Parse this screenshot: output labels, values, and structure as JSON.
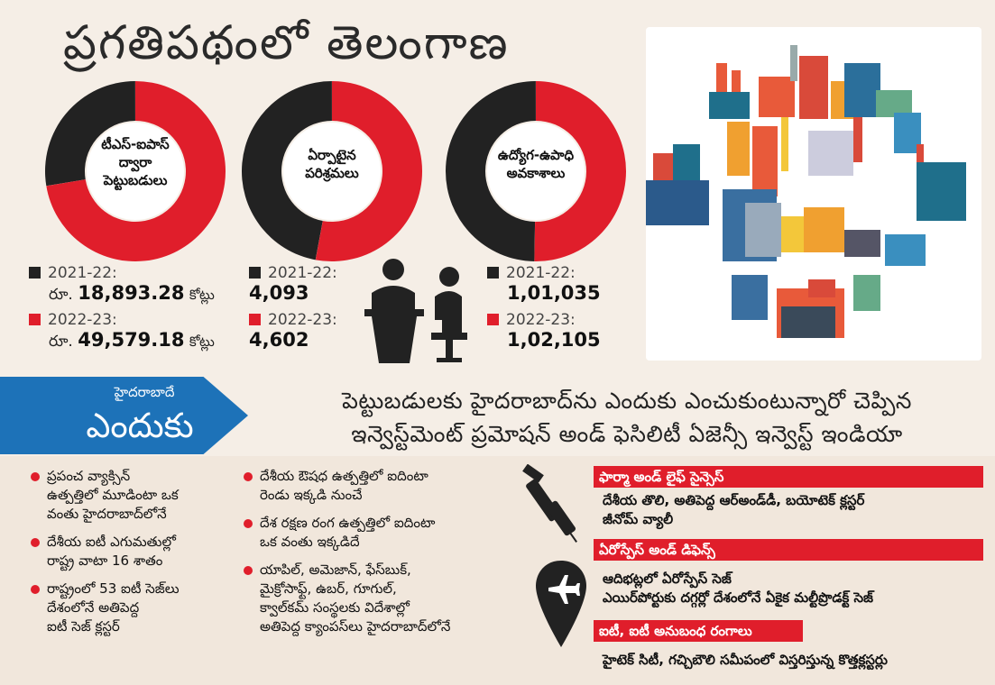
{
  "title": "ప్రగతిపథంలో తెలంగాణ",
  "colors": {
    "red": "#e01e2b",
    "black": "#222222",
    "blue": "#1d72b8"
  },
  "chart_data": [
    {
      "type": "pie",
      "title": "టీఎస్-ఐపాస్ ద్వారా పెట్టుబడులు",
      "categories": [
        "2021-22",
        "2022-23"
      ],
      "values": [
        18893.28,
        49579.18
      ],
      "colors": [
        "#222222",
        "#e01e2b"
      ]
    },
    {
      "type": "pie",
      "title": "ఏర్పాటైన పరిశ్రమలు",
      "categories": [
        "2021-22",
        "2022-23"
      ],
      "values": [
        4093,
        4602
      ],
      "colors": [
        "#222222",
        "#e01e2b"
      ]
    },
    {
      "type": "pie",
      "title": "ఉద్యోగ-ఉపాధి అవకాశాలు",
      "categories": [
        "2021-22",
        "2022-23"
      ],
      "values": [
        101035,
        102105
      ],
      "colors": [
        "#222222",
        "#e01e2b"
      ]
    }
  ],
  "donut_labels": [
    [
      "టీఎస్-ఐపాస్",
      "ద్వారా",
      "పెట్టుబడులు"
    ],
    [
      "ఏర్పాటైన",
      "పరిశ్రమలు"
    ],
    [
      "ఉద్యోగ-ఉపాధి",
      "అవకాశాలు"
    ]
  ],
  "stats": {
    "investments": {
      "y1": "2021-22:",
      "y1_prefix": "రూ.",
      "y1_value": "18,893.28",
      "y1_unit": "కోట్లు",
      "y2": "2022-23:",
      "y2_prefix": "రూ.",
      "y2_value": "49,579.18",
      "y2_unit": "కోట్లు"
    },
    "industries": {
      "y1": "2021-22:",
      "y1_value": "4,093",
      "y2": "2022-23:",
      "y2_value": "4,602"
    },
    "jobs": {
      "y1": "2021-22:",
      "y1_value": "1,01,035",
      "y2": "2022-23:",
      "y2_value": "1,02,105"
    }
  },
  "banner": {
    "small": "హైదరాబాదే",
    "big": "ఎందుకు",
    "subtitle_line1": "పెట్టుబడులకు హైదరాబాద్‌ను ఎందుకు ఎంచుకుంటున్నారో చెప్పిన",
    "subtitle_line2": "ఇన్వెస్ట్‌మెంట్ ప్రమోషన్ అండ్ ఫెసిలిటీ ఏజెన్సీ ఇన్వెస్ట్ ఇండియా"
  },
  "col1": [
    [
      "ప్రపంచ వ్యాక్సిన్",
      "ఉత్పత్తిలో మూడింటా ఒక",
      "వంతు హైదరాబాద్‌లోనే"
    ],
    [
      "దేశీయ ఐటీ ఎగుమతుల్లో",
      "రాష్ట్ర వాటా 16 శాతం"
    ],
    [
      "రాష్ట్రంలో 53 ఐటీ సెజ్‌లు",
      "దేశంలోనే అతిపెద్ద",
      "ఐటీ సెజ్ క్లస్టర్"
    ]
  ],
  "col2": [
    [
      "దేశీయ ఔషధ ఉత్పత్తిలో ఐదింటా",
      "రెండు ఇక్కడి నుంచే"
    ],
    [
      "దేశ రక్షణ రంగ ఉత్పత్తిలో ఐదింటా",
      "ఒక వంతు ఇక్కడిదే"
    ],
    [
      "యాపిల్, అమెజాన్, ఫేస్‌బుక్,",
      "మైక్రోసాఫ్ట్, ఉబర్, గూగుల్,",
      "క్వాల్‌కమ్ సంస్థలకు విదేశాల్లో",
      "అతిపెద్ద క్యాంపస్‌లు హైదరాబాద్‌లోనే"
    ]
  ],
  "sectors": [
    {
      "heading": "ఫార్మా అండ్ లైఫ్ సైన్సెస్",
      "lines": [
        "దేశీయ తొలి, అతిపెద్ద ఆర్‌అండ్‌డీ, బయోటెక్ క్లస్టర్",
        "జీనోమ్ వ్యాలీ"
      ]
    },
    {
      "heading": "ఏరోస్పేస్ అండ్ డిఫెన్స్",
      "lines": [
        "ఆదిభట్లలో ఏరోస్పేస్ సెజ్",
        "ఎయిర్‌పోర్టుకు దగ్గర్లో దేశంలోనే ఏకైక మల్టీప్రొడక్ట్ సెజ్"
      ]
    },
    {
      "heading": "ఐటీ, ఐటీ అనుబంధ రంగాలు",
      "lines": [
        "హైటెక్ సిటీ, గచ్చిబౌలి సమీపంలో విస్తరిస్తున్న కొత్తక్లస్టర్లు"
      ]
    }
  ]
}
